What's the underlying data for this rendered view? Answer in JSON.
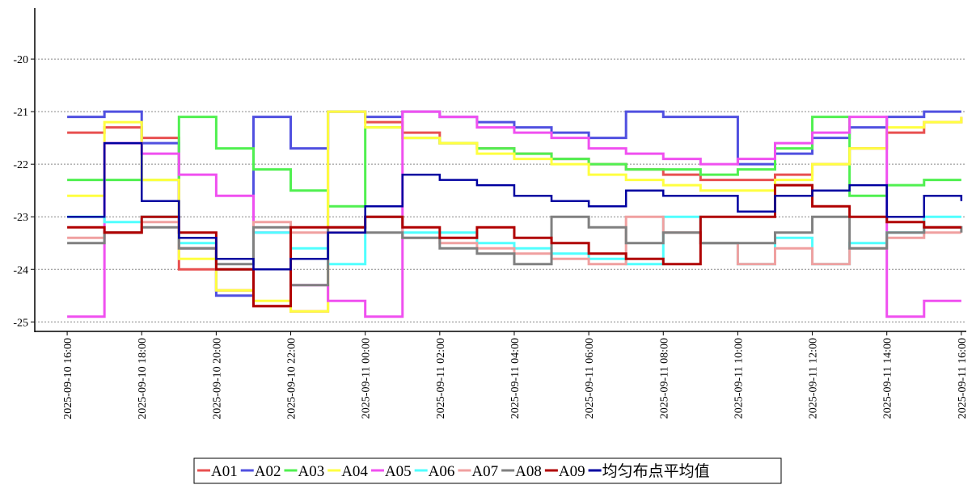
{
  "chart_data": {
    "type": "line",
    "step": true,
    "grid": true,
    "x": [
      "2025-09-10 16:00",
      "2025-09-10 17:00",
      "2025-09-10 18:00",
      "2025-09-10 19:00",
      "2025-09-10 20:00",
      "2025-09-10 21:00",
      "2025-09-10 22:00",
      "2025-09-10 23:00",
      "2025-09-11 00:00",
      "2025-09-11 01:00",
      "2025-09-11 02:00",
      "2025-09-11 03:00",
      "2025-09-11 04:00",
      "2025-09-11 05:00",
      "2025-09-11 06:00",
      "2025-09-11 07:00",
      "2025-09-11 08:00",
      "2025-09-11 09:00",
      "2025-09-11 10:00",
      "2025-09-11 11:00",
      "2025-09-11 12:00",
      "2025-09-11 13:00",
      "2025-09-11 14:00",
      "2025-09-11 15:00",
      "2025-09-11 16:00"
    ],
    "xlim": [
      "2025-09-10 15:13",
      "2025-09-11 16:08"
    ],
    "xticks": [
      "2025-09-10 16:00",
      "2025-09-10 18:00",
      "2025-09-10 20:00",
      "2025-09-10 22:00",
      "2025-09-11 00:00",
      "2025-09-11 02:00",
      "2025-09-11 04:00",
      "2025-09-11 06:00",
      "2025-09-11 08:00",
      "2025-09-11 10:00",
      "2025-09-11 12:00",
      "2025-09-11 14:00",
      "2025-09-11 16:00"
    ],
    "ylim": [
      -25.18,
      -19.03
    ],
    "yticks": [
      -20,
      -21,
      -22,
      -23,
      -24,
      -25
    ],
    "series": [
      {
        "name": "A01",
        "color": "#e85050",
        "values": [
          -21.4,
          -21.3,
          -21.5,
          -24.0,
          -24.4,
          -24.7,
          -24.8,
          -21.0,
          -21.2,
          -21.4,
          -21.6,
          -21.7,
          -21.8,
          -21.9,
          -22.0,
          -22.1,
          -22.2,
          -22.3,
          -22.3,
          -22.2,
          -22.0,
          -21.7,
          -21.4,
          -21.2,
          -21.1
        ]
      },
      {
        "name": "A02",
        "color": "#5050e0",
        "values": [
          -21.1,
          -21.0,
          -21.6,
          -23.6,
          -24.5,
          -21.1,
          -21.7,
          -21.0,
          -21.1,
          -21.0,
          -21.1,
          -21.2,
          -21.3,
          -21.4,
          -21.5,
          -21.0,
          -21.1,
          -21.1,
          -22.0,
          -21.8,
          -21.5,
          -21.3,
          -21.1,
          -21.0,
          -21.0
        ]
      },
      {
        "name": "A03",
        "color": "#50f050",
        "values": [
          -22.3,
          -22.3,
          -22.3,
          -21.1,
          -21.7,
          -22.1,
          -22.5,
          -22.8,
          -21.3,
          -21.5,
          -21.6,
          -21.7,
          -21.8,
          -21.9,
          -22.0,
          -22.1,
          -22.1,
          -22.2,
          -22.1,
          -21.7,
          -21.1,
          -22.6,
          -22.4,
          -22.3,
          -22.3
        ]
      },
      {
        "name": "A04",
        "color": "#ffff40",
        "values": [
          -22.6,
          -21.2,
          -22.3,
          -23.8,
          -24.4,
          -24.6,
          -24.8,
          -21.0,
          -21.3,
          -21.5,
          -21.6,
          -21.8,
          -21.9,
          -22.0,
          -22.2,
          -22.3,
          -22.4,
          -22.5,
          -22.5,
          -22.3,
          -22.0,
          -21.7,
          -21.3,
          -21.2,
          -21.1
        ]
      },
      {
        "name": "A05",
        "color": "#f050f0",
        "values": [
          -24.9,
          -21.6,
          -21.8,
          -22.2,
          -22.6,
          -23.3,
          -24.3,
          -24.6,
          -24.9,
          -21.0,
          -21.1,
          -21.3,
          -21.4,
          -21.5,
          -21.7,
          -21.8,
          -21.9,
          -22.0,
          -21.9,
          -21.6,
          -21.4,
          -21.1,
          -24.9,
          -24.6,
          -24.6
        ]
      },
      {
        "name": "A06",
        "color": "#50ffff",
        "values": [
          -23.0,
          -23.1,
          -23.0,
          -23.5,
          -24.0,
          -23.3,
          -23.6,
          -23.9,
          -23.0,
          -23.3,
          -23.3,
          -23.5,
          -23.6,
          -23.7,
          -23.8,
          -23.9,
          -23.0,
          -23.5,
          -23.9,
          -23.4,
          -23.9,
          -23.5,
          -23.3,
          -23.0,
          -23.0
        ]
      },
      {
        "name": "A07",
        "color": "#f0a0a0",
        "values": [
          -23.4,
          -23.3,
          -23.1,
          -23.6,
          -24.0,
          -23.1,
          -23.3,
          -23.3,
          -23.0,
          -23.4,
          -23.5,
          -23.6,
          -23.7,
          -23.8,
          -23.9,
          -23.0,
          -23.3,
          -23.5,
          -23.9,
          -23.6,
          -23.9,
          -23.6,
          -23.4,
          -23.3,
          -23.3
        ]
      },
      {
        "name": "A08",
        "color": "#808080",
        "values": [
          -23.5,
          -23.3,
          -23.2,
          -23.6,
          -23.9,
          -23.2,
          -24.3,
          -23.2,
          -23.3,
          -23.4,
          -23.6,
          -23.7,
          -23.9,
          -23.0,
          -23.2,
          -23.5,
          -23.3,
          -23.5,
          -23.5,
          -23.3,
          -23.0,
          -23.6,
          -23.3,
          -23.2,
          -23.3
        ]
      },
      {
        "name": "A09",
        "color": "#b00000",
        "values": [
          -23.2,
          -23.3,
          -23.0,
          -23.3,
          -24.0,
          -24.7,
          -23.2,
          -23.2,
          -23.0,
          -23.2,
          -23.4,
          -23.2,
          -23.4,
          -23.5,
          -23.7,
          -23.8,
          -23.9,
          -23.0,
          -23.0,
          -22.4,
          -22.8,
          -23.0,
          -23.1,
          -23.2,
          -23.2
        ]
      },
      {
        "name": "均匀布点平均值",
        "color": "#0000a0",
        "values": [
          -23.0,
          -21.6,
          -22.7,
          -23.4,
          -23.8,
          -24.0,
          -23.8,
          -23.3,
          -22.8,
          -22.2,
          -22.3,
          -22.4,
          -22.6,
          -22.7,
          -22.8,
          -22.5,
          -22.6,
          -22.6,
          -22.9,
          -22.6,
          -22.5,
          -22.4,
          -23.0,
          -22.6,
          -22.7
        ]
      }
    ]
  }
}
